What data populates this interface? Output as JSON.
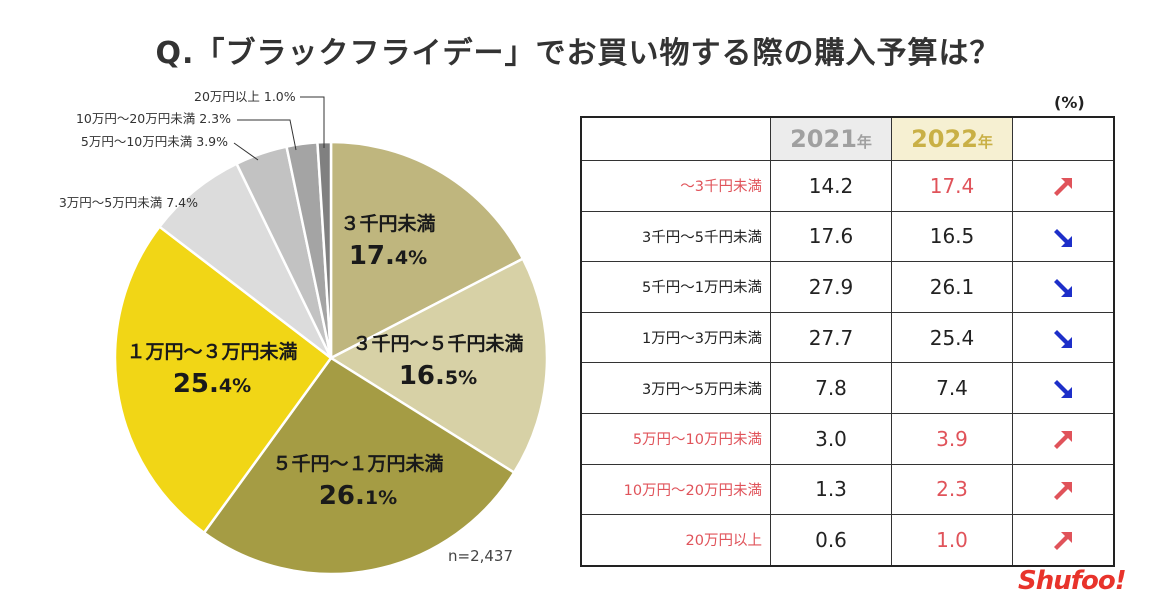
{
  "title": "Q.「ブラックフライデー」でお買い物する際の購入予算は？",
  "chart_data": [
    {
      "type": "pie",
      "title": "Q.「ブラックフライデー」でお買い物する際の購入予算は？",
      "start": "top, clockwise",
      "slices": [
        {
          "label": "3千円未満",
          "display_name": "３千円未満",
          "value": 17.4,
          "pct_main": "17.",
          "pct_dec": "4%",
          "color": "#bfb67e"
        },
        {
          "label": "3千円～5千円未満",
          "display_name": "３千円～５千円未満",
          "value": 16.5,
          "pct_main": "16.",
          "pct_dec": "5%",
          "color": "#d7d1a6"
        },
        {
          "label": "5千円～1万円未満",
          "display_name": "５千円～１万円未満",
          "value": 26.1,
          "pct_main": "26.",
          "pct_dec": "1%",
          "color": "#a59c44"
        },
        {
          "label": "1万円～3万円未満",
          "display_name": "１万円～３万円未満",
          "value": 25.4,
          "pct_main": "25.",
          "pct_dec": "4%",
          "color": "#f1d616"
        },
        {
          "label": "3万円～5万円未満",
          "display_name": "3万円～5万円未満 7.4%",
          "value": 7.4,
          "color": "#dcdcdc"
        },
        {
          "label": "5万円～10万円未満",
          "display_name": "5万円～10万円未満 3.9%",
          "value": 3.9,
          "color": "#c2c2c2"
        },
        {
          "label": "10万円～20万円未満",
          "display_name": "10万円～20万円未満 2.3%",
          "value": 2.3,
          "color": "#a4a4a4"
        },
        {
          "label": "20万円以上",
          "display_name": "20万円以上 1.0%",
          "value": 1.0,
          "color": "#808080"
        }
      ],
      "note": "n=2,437"
    },
    {
      "type": "table",
      "unit": "(%)",
      "columns": [
        "",
        "2021年",
        "2022年",
        ""
      ],
      "col_2021": {
        "year": "2021",
        "suffix": "年"
      },
      "col_2022": {
        "year": "2022",
        "suffix": "年"
      },
      "rows": [
        {
          "category": "～3千円未満",
          "v2021": "14.2",
          "v2022": "17.4",
          "trend": "up"
        },
        {
          "category": "3千円～5千円未満",
          "v2021": "17.6",
          "v2022": "16.5",
          "trend": "down"
        },
        {
          "category": "5千円～1万円未満",
          "v2021": "27.9",
          "v2022": "26.1",
          "trend": "down"
        },
        {
          "category": "1万円～3万円未満",
          "v2021": "27.7",
          "v2022": "25.4",
          "trend": "down"
        },
        {
          "category": "3万円～5万円未満",
          "v2021": "7.8",
          "v2022": "7.4",
          "trend": "down"
        },
        {
          "category": "5万円～10万円未満",
          "v2021": "3.0",
          "v2022": "3.9",
          "trend": "up"
        },
        {
          "category": "10万円～20万円未満",
          "v2021": "1.3",
          "v2022": "2.3",
          "trend": "up"
        },
        {
          "category": "20万円以上",
          "v2021": "0.6",
          "v2022": "1.0",
          "trend": "up"
        }
      ]
    }
  ],
  "colors": {
    "up": "#e0535a",
    "down": "#1d2fc9"
  },
  "logo": "Shufoo!"
}
